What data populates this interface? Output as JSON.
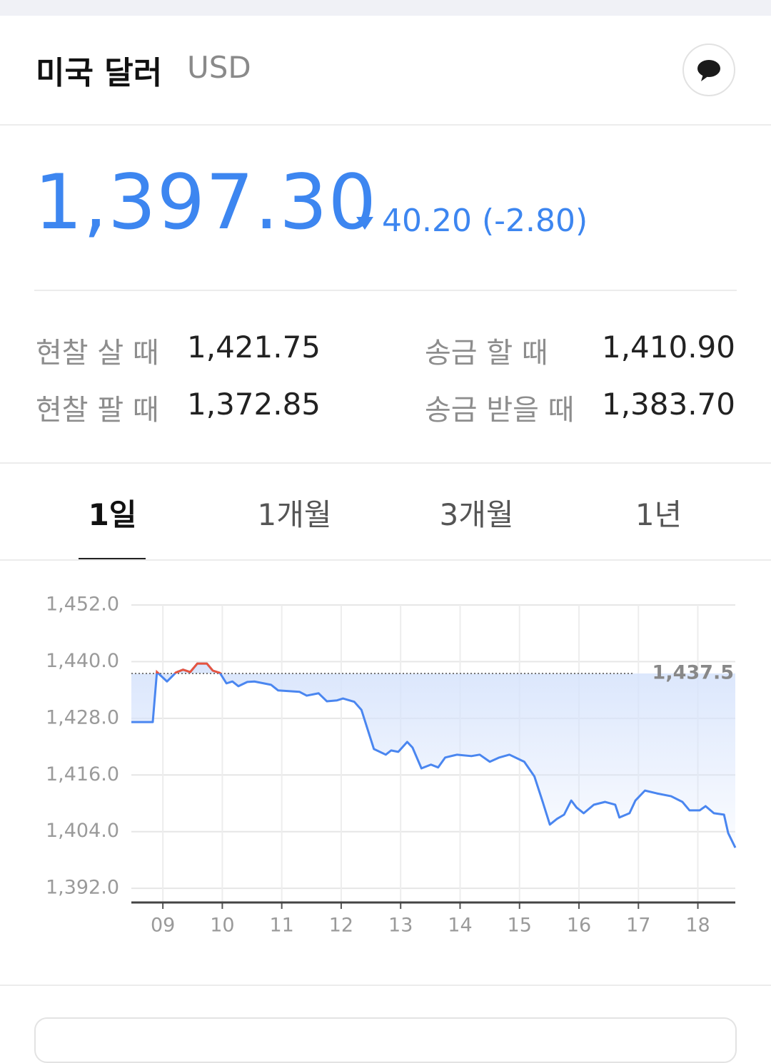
{
  "header": {
    "title": "미국 달러",
    "code": "USD"
  },
  "price": {
    "value": "1,397.30",
    "change": "40.20",
    "change_rate": "(-2.80)"
  },
  "rates": [
    {
      "label": "현찰 살 때",
      "value": "1,421.75"
    },
    {
      "label": "송금 할 때",
      "value": "1,410.90"
    },
    {
      "label": "현찰 팔 때",
      "value": "1,372.85"
    },
    {
      "label": "송금 받을 때",
      "value": "1,383.70"
    }
  ],
  "tabs": [
    "1일",
    "1개월",
    "3개월",
    "1년"
  ],
  "active_tab": 0,
  "chart_data": {
    "type": "line",
    "x": [
      8.47,
      8.83,
      8.9,
      9.07,
      9.22,
      9.34,
      9.46,
      9.58,
      9.74,
      9.84,
      9.96,
      10.07,
      10.17,
      10.27,
      10.42,
      10.54,
      10.82,
      10.94,
      11.3,
      11.42,
      11.62,
      11.76,
      11.93,
      12.03,
      12.22,
      12.34,
      12.55,
      12.75,
      12.84,
      12.96,
      13.11,
      13.2,
      13.35,
      13.51,
      13.63,
      13.75,
      13.95,
      14.19,
      14.33,
      14.5,
      14.66,
      14.83,
      15.08,
      15.25,
      15.39,
      15.51,
      15.63,
      15.75,
      15.87,
      15.96,
      16.08,
      16.25,
      16.44,
      16.61,
      16.68,
      16.85,
      16.95,
      17.11,
      17.31,
      17.55,
      17.74,
      17.86,
      18.03,
      18.13,
      18.27,
      18.44,
      18.51,
      18.63
    ],
    "series": [
      {
        "color": "#4a86f0",
        "values": [
          1427.2,
          1427.2,
          1437.8,
          1435.8,
          1437.7,
          1438.3,
          1437.8,
          1439.6,
          1439.6,
          1438.1,
          1437.6,
          1435.4,
          1435.8,
          1434.8,
          1435.7,
          1435.8,
          1435.1,
          1433.9,
          1433.6,
          1432.8,
          1433.3,
          1431.6,
          1431.8,
          1432.2,
          1431.5,
          1429.8,
          1421.5,
          1420.3,
          1421.2,
          1420.9,
          1423.0,
          1421.8,
          1417.4,
          1418.2,
          1417.6,
          1419.7,
          1420.3,
          1420.0,
          1420.3,
          1418.8,
          1419.7,
          1420.3,
          1418.8,
          1415.7,
          1410.3,
          1405.5,
          1406.7,
          1407.6,
          1410.6,
          1409.1,
          1407.9,
          1409.7,
          1410.3,
          1409.7,
          1407.0,
          1407.9,
          1410.6,
          1412.7,
          1412.1,
          1411.5,
          1410.3,
          1408.5,
          1408.5,
          1409.4,
          1407.9,
          1407.6,
          1403.7,
          1400.6
        ]
      }
    ],
    "xlim": [
      8.47,
      18.63
    ],
    "xticks": [
      {
        "value": 9,
        "label": "09"
      },
      10,
      11,
      12,
      13,
      14,
      15,
      16,
      17,
      18
    ],
    "ylim": [
      1389,
      1452
    ],
    "yticks": [
      {
        "value": 1392,
        "label": "1,392.0"
      },
      {
        "value": 1404,
        "label": "1,404.0"
      },
      {
        "value": 1416,
        "label": "1,416.0"
      },
      {
        "value": 1428,
        "label": "1,428.0"
      },
      {
        "value": 1440,
        "label": "1,440.0"
      },
      {
        "value": 1452,
        "label": "1,452.0"
      }
    ],
    "grid": true,
    "reference": {
      "value": 1437.5,
      "label": "1,437.5"
    },
    "above_reference_color": "#e8553f",
    "fill_color": "#d6e3fc"
  }
}
